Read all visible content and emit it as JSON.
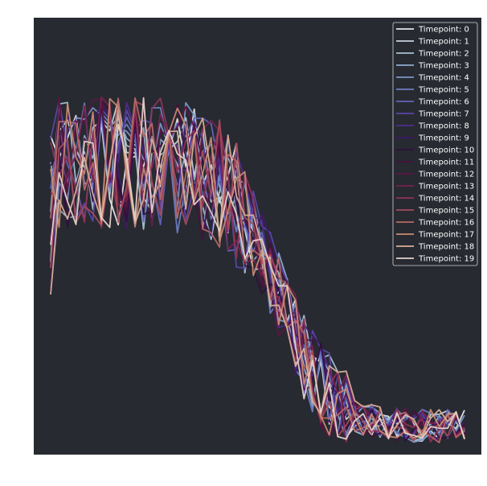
{
  "chart_data": {
    "type": "line",
    "title": "",
    "xlabel": "",
    "ylabel": "",
    "x_points": 50,
    "xlim": [
      -2,
      51
    ],
    "ylim": [
      -0.05,
      1.07
    ],
    "grid": false,
    "axes_visible": false,
    "legend_position": "top-right",
    "colors": {
      "background": "#272a31",
      "legend_border": "#cfd2d8"
    },
    "series": [
      {
        "name": "Timepoint: 0",
        "color": "#e7e5e8"
      },
      {
        "name": "Timepoint: 1",
        "color": "#c6d2d9"
      },
      {
        "name": "Timepoint: 2",
        "color": "#a7c0d0"
      },
      {
        "name": "Timepoint: 3",
        "color": "#8eadcd"
      },
      {
        "name": "Timepoint: 4",
        "color": "#7b97c7"
      },
      {
        "name": "Timepoint: 5",
        "color": "#6d7ec1"
      },
      {
        "name": "Timepoint: 6",
        "color": "#6463b9"
      },
      {
        "name": "Timepoint: 7",
        "color": "#5b46a8"
      },
      {
        "name": "Timepoint: 8",
        "color": "#502c8c"
      },
      {
        "name": "Timepoint: 9",
        "color": "#40196a"
      },
      {
        "name": "Timepoint: 10",
        "color": "#2f0f3e"
      },
      {
        "name": "Timepoint: 11",
        "color": "#45113e"
      },
      {
        "name": "Timepoint: 12",
        "color": "#5d1446"
      },
      {
        "name": "Timepoint: 13",
        "color": "#762150"
      },
      {
        "name": "Timepoint: 14",
        "color": "#8f3356"
      },
      {
        "name": "Timepoint: 15",
        "color": "#a54a5c"
      },
      {
        "name": "Timepoint: 16",
        "color": "#b86765"
      },
      {
        "name": "Timepoint: 17",
        "color": "#c88a73"
      },
      {
        "name": "Timepoint: 18",
        "color": "#d8b09a"
      },
      {
        "name": "Timepoint: 19",
        "color": "#e5d2c9"
      }
    ]
  }
}
